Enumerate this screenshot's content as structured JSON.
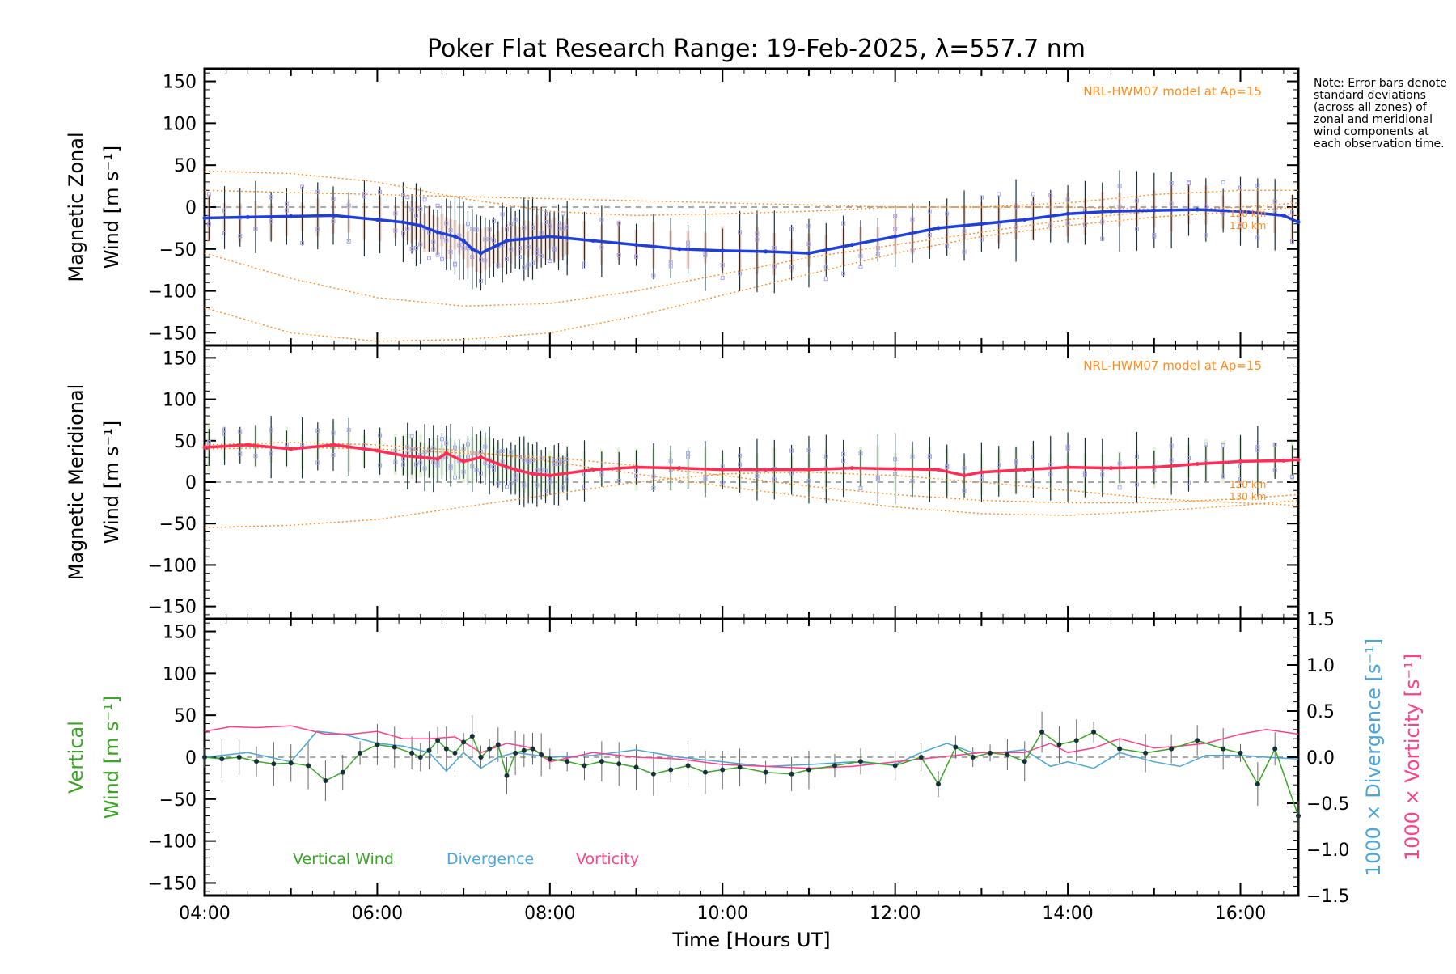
{
  "title": "Poker Flat Research Range: 19-Feb-2025, λ=557.7 nm",
  "note": "Note: Error bars denote standard deviations (across all zones) of zonal and meridional wind components at each observation time.",
  "xlabel": "Time [Hours UT]",
  "model_label": "NRL-HWM07 model at Ap=15",
  "km_labels": [
    "120 km",
    "130 km"
  ],
  "legend": {
    "vertical": "Vertical Wind",
    "divergence": "Divergence",
    "vorticity": "Vorticity"
  },
  "colors": {
    "zonal": "#1f3fd8",
    "zonal_light": "#4aa0e6",
    "meridional": "#ff2d55",
    "vertical": "#39a624",
    "divergence": "#4aa6d8",
    "vorticity": "#ff3f8a",
    "model": "#ff8c1a",
    "errorbar": "#16303a",
    "scatter": "#a9a4e8",
    "spread": "#f7b79c"
  },
  "chart_data": [
    {
      "type": "line",
      "panel": "zonal",
      "ylabel_line1": "Magnetic Zonal",
      "ylabel_line2": "Wind [m s⁻¹]",
      "xlim": [
        4.0,
        16.67
      ],
      "ylim": [
        -165,
        165
      ],
      "yticks": [
        150,
        100,
        50,
        0,
        -50,
        -100,
        -150
      ],
      "xticks": [
        "04:00",
        "06:00",
        "08:00",
        "10:00",
        "12:00",
        "14:00",
        "16:00"
      ],
      "x": [
        4.0,
        4.5,
        5.0,
        5.5,
        6.0,
        6.3,
        6.5,
        6.7,
        6.9,
        7.0,
        7.1,
        7.2,
        7.4,
        7.5,
        7.7,
        8.0,
        8.5,
        9.0,
        9.5,
        10.0,
        10.5,
        11.0,
        11.5,
        12.0,
        12.5,
        13.0,
        13.5,
        14.0,
        14.5,
        15.0,
        15.5,
        16.0,
        16.5,
        16.67
      ],
      "series": [
        {
          "values": [
            -13,
            -12,
            -11,
            -10,
            -15,
            -18,
            -22,
            -30,
            -35,
            -40,
            -50,
            -55,
            -45,
            -40,
            -38,
            -35,
            -40,
            -45,
            -50,
            -52,
            -53,
            -55,
            -45,
            -35,
            -25,
            -20,
            -15,
            -8,
            -5,
            -4,
            -3,
            -5,
            -10,
            -18
          ]
        }
      ],
      "model": {
        "label": "NRL-HWM07 model at Ap=15",
        "curves": [
          {
            "x": [
              4,
              5,
              6,
              7,
              8,
              9,
              10,
              11,
              12,
              13,
              14,
              15,
              16,
              16.67
            ],
            "values": [
              43,
              40,
              30,
              10,
              -5,
              -10,
              -8,
              -5,
              0,
              0,
              5,
              15,
              20,
              20
            ]
          },
          {
            "x": [
              4,
              5,
              6,
              7,
              8,
              9,
              10,
              11,
              12,
              13,
              14,
              15,
              16,
              16.67
            ],
            "values": [
              -55,
              -85,
              -108,
              -118,
              -115,
              -100,
              -80,
              -60,
              -45,
              -30,
              -15,
              -5,
              0,
              5
            ]
          },
          {
            "x": [
              4,
              5,
              6,
              7,
              8,
              9,
              10,
              11,
              12,
              13,
              14,
              15,
              16,
              16.67
            ],
            "values": [
              -120,
              -150,
              -160,
              -158,
              -150,
              -130,
              -105,
              -80,
              -55,
              -35,
              -22,
              -12,
              -5,
              0
            ]
          },
          {
            "x": [
              4,
              6,
              8,
              10,
              12,
              14,
              16,
              16.67
            ],
            "values": [
              20,
              15,
              10,
              5,
              0,
              0,
              -5,
              -10
            ]
          }
        ]
      }
    },
    {
      "type": "line",
      "panel": "meridional",
      "ylabel_line1": "Magnetic Meridional",
      "ylabel_line2": "Wind [m s⁻¹]",
      "xlim": [
        4.0,
        16.67
      ],
      "ylim": [
        -165,
        165
      ],
      "yticks": [
        150,
        100,
        50,
        0,
        -50,
        -100,
        -150
      ],
      "xticks": [
        "04:00",
        "06:00",
        "08:00",
        "10:00",
        "12:00",
        "14:00",
        "16:00"
      ],
      "x": [
        4.0,
        4.5,
        5.0,
        5.5,
        6.0,
        6.3,
        6.5,
        6.7,
        6.8,
        7.0,
        7.2,
        7.4,
        7.6,
        7.8,
        8.0,
        8.5,
        9.0,
        9.5,
        10.0,
        10.5,
        11.0,
        11.5,
        12.0,
        12.5,
        12.8,
        13.0,
        13.5,
        14.0,
        14.5,
        15.0,
        15.5,
        16.0,
        16.5,
        16.67
      ],
      "series": [
        {
          "values": [
            42,
            45,
            40,
            45,
            38,
            32,
            30,
            28,
            35,
            25,
            30,
            22,
            15,
            10,
            8,
            15,
            18,
            17,
            15,
            15,
            15,
            17,
            16,
            15,
            8,
            12,
            15,
            18,
            17,
            18,
            22,
            25,
            26,
            27
          ]
        }
      ],
      "model": {
        "label": "NRL-HWM07 model at Ap=15",
        "curves": [
          {
            "x": [
              4,
              5,
              6,
              7,
              8,
              9,
              10,
              11,
              12,
              13,
              14,
              15,
              16,
              16.67
            ],
            "values": [
              -55,
              -52,
              -45,
              -30,
              -15,
              0,
              10,
              12,
              8,
              0,
              -10,
              -20,
              -25,
              -28
            ]
          },
          {
            "x": [
              4,
              5,
              6,
              7,
              8,
              9,
              10,
              11,
              12,
              13,
              14,
              15,
              16,
              16.67
            ],
            "values": [
              45,
              48,
              45,
              38,
              25,
              10,
              -5,
              -18,
              -30,
              -38,
              -40,
              -35,
              -28,
              -22
            ]
          },
          {
            "x": [
              4,
              5,
              6,
              7,
              8,
              9,
              10,
              11,
              12,
              13,
              14,
              15,
              16,
              16.67
            ],
            "values": [
              40,
              42,
              40,
              35,
              30,
              20,
              8,
              -5,
              -15,
              -22,
              -25,
              -25,
              -20,
              -15
            ]
          }
        ]
      }
    },
    {
      "type": "line",
      "panel": "vertical",
      "ylabel_line1": "Vertical",
      "ylabel_line2": "Wind [m s⁻¹]",
      "ylabel_right1": "1000 × Divergence [s⁻¹]",
      "ylabel_right2": "1000 × Vorticity [s⁻¹]",
      "xlim": [
        4.0,
        16.67
      ],
      "ylim": [
        -165,
        165
      ],
      "y2lim": [
        -1.5,
        1.5
      ],
      "yticks": [
        150,
        100,
        50,
        0,
        -50,
        -100,
        -150
      ],
      "y2ticks": [
        "1.5",
        "1.0",
        "0.5",
        "0.0",
        "−0.5",
        "−1.0",
        "−1.5"
      ],
      "xticks": [
        "04:00",
        "06:00",
        "08:00",
        "10:00",
        "12:00",
        "14:00",
        "16:00"
      ],
      "series": [
        {
          "name": "Vertical Wind",
          "axis": "left",
          "x": [
            4.0,
            4.2,
            4.4,
            4.6,
            4.8,
            5.0,
            5.2,
            5.4,
            5.6,
            5.8,
            6.0,
            6.2,
            6.4,
            6.5,
            6.6,
            6.7,
            6.8,
            6.9,
            7.0,
            7.1,
            7.2,
            7.3,
            7.4,
            7.5,
            7.6,
            7.7,
            7.8,
            7.9,
            8.0,
            8.2,
            8.4,
            8.6,
            8.8,
            9.0,
            9.2,
            9.4,
            9.6,
            9.8,
            10.0,
            10.2,
            10.5,
            10.8,
            11.0,
            11.3,
            11.6,
            12.0,
            12.3,
            12.5,
            12.7,
            12.9,
            13.1,
            13.3,
            13.5,
            13.7,
            13.9,
            14.1,
            14.3,
            14.6,
            14.9,
            15.2,
            15.5,
            15.8,
            16.0,
            16.2,
            16.4,
            16.67
          ],
          "values": [
            0,
            -2,
            0,
            -5,
            -8,
            -7,
            -10,
            -28,
            -18,
            5,
            15,
            12,
            5,
            0,
            8,
            20,
            10,
            5,
            18,
            25,
            0,
            10,
            15,
            -22,
            5,
            8,
            10,
            3,
            -2,
            -5,
            -10,
            -5,
            -8,
            -12,
            -20,
            -15,
            -10,
            -18,
            -15,
            -12,
            -18,
            -20,
            -15,
            -10,
            -5,
            -10,
            0,
            -32,
            12,
            0,
            5,
            3,
            -5,
            30,
            15,
            20,
            30,
            10,
            5,
            10,
            20,
            10,
            5,
            -32,
            10,
            -70
          ]
        },
        {
          "name": "Divergence",
          "axis": "right",
          "x": [
            4.0,
            4.5,
            5.0,
            5.3,
            5.6,
            6.0,
            6.3,
            6.6,
            6.8,
            7.0,
            7.2,
            7.4,
            7.6,
            8.0,
            8.5,
            9.0,
            9.5,
            10.0,
            10.5,
            11.0,
            11.5,
            12.0,
            12.3,
            12.6,
            12.9,
            13.2,
            13.5,
            13.8,
            14.0,
            14.3,
            14.6,
            15.0,
            15.3,
            15.6,
            16.0,
            16.3,
            16.67
          ],
          "values": [
            0.0,
            0.05,
            -0.05,
            0.28,
            0.25,
            0.15,
            0.12,
            0.05,
            -0.15,
            0.05,
            -0.12,
            0.0,
            0.05,
            0.0,
            0.02,
            0.08,
            0.0,
            -0.05,
            -0.1,
            -0.08,
            -0.05,
            -0.08,
            0.05,
            0.15,
            0.05,
            0.05,
            0.08,
            -0.1,
            -0.05,
            -0.12,
            0.05,
            -0.05,
            -0.1,
            0.02,
            0.02,
            0.0,
            -0.02
          ]
        },
        {
          "name": "Vorticity",
          "axis": "right",
          "x": [
            4.0,
            4.3,
            4.6,
            5.0,
            5.4,
            5.7,
            6.0,
            6.3,
            6.6,
            6.9,
            7.2,
            7.5,
            7.8,
            8.0,
            8.5,
            9.0,
            9.5,
            10.0,
            10.5,
            11.0,
            11.5,
            12.0,
            12.5,
            13.0,
            13.5,
            13.8,
            14.0,
            14.3,
            14.6,
            15.0,
            15.3,
            15.6,
            16.0,
            16.3,
            16.67
          ],
          "values": [
            0.28,
            0.33,
            0.32,
            0.34,
            0.25,
            0.25,
            0.28,
            0.2,
            0.2,
            0.22,
            0.05,
            0.15,
            0.1,
            -0.05,
            0.05,
            0.0,
            -0.02,
            -0.08,
            -0.1,
            -0.12,
            -0.1,
            -0.05,
            0.0,
            0.05,
            0.05,
            0.15,
            0.05,
            0.1,
            0.2,
            0.1,
            0.12,
            0.15,
            0.25,
            0.3,
            0.25
          ]
        }
      ]
    }
  ]
}
